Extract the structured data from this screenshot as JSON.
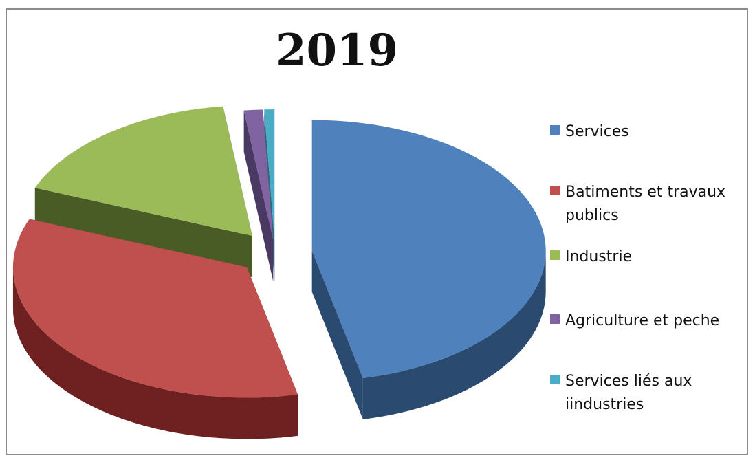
{
  "chart_data": {
    "type": "pie",
    "title": "2019",
    "categories": [
      "Services",
      "Batiments et travaux publics",
      "Industrie",
      "Agriculture et peche",
      "Services liés aux iindustries"
    ],
    "values": [
      46.5,
      34.5,
      17.0,
      1.3,
      0.7
    ],
    "unit": "%",
    "exploded": true,
    "three_d": true,
    "legend_position": "right",
    "colors": [
      "#4f81bd",
      "#c0504d",
      "#9bbb59",
      "#8064a2",
      "#4bacc6"
    ],
    "side_colors": [
      "#2b4a70",
      "#6e2120",
      "#4a5c26",
      "#4a3a63",
      "#2d6a7a"
    ],
    "legend": [
      {
        "label": "Services"
      },
      {
        "label": "Batiments et travaux publics"
      },
      {
        "label": "Industrie"
      },
      {
        "label": "Agriculture et peche"
      },
      {
        "label": "Services liés aux iindustries"
      }
    ]
  }
}
